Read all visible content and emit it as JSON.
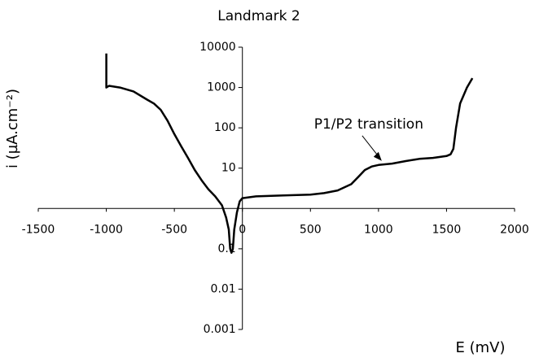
{
  "chart_data": {
    "type": "line",
    "title": "Landmark 2",
    "xlabel": "E (mV)",
    "ylabel": "i (µA.cm⁻²)",
    "xlim": [
      -1500,
      2000
    ],
    "xticks": [
      -1500,
      -1000,
      -500,
      0,
      500,
      1000,
      1500,
      2000
    ],
    "ylim": [
      0.001,
      10000
    ],
    "yticks": [
      0.001,
      0.01,
      0.1,
      10,
      100,
      1000,
      10000
    ],
    "y_log_scale": true,
    "x_axis_crossing": 1,
    "grid": false,
    "annotations": [
      {
        "text": "P1/P2 transition",
        "x": 1000,
        "y": 12
      }
    ],
    "series": [
      {
        "name": "Landmark 2",
        "color": "#000000",
        "x": [
          -1000,
          -1000,
          -980,
          -900,
          -800,
          -700,
          -650,
          -600,
          -550,
          -500,
          -450,
          -400,
          -350,
          -300,
          -250,
          -200,
          -150,
          -120,
          -100,
          -90,
          -80,
          -70,
          -60,
          -40,
          -20,
          0,
          100,
          300,
          500,
          600,
          700,
          800,
          850,
          900,
          950,
          1000,
          1100,
          1200,
          1300,
          1400,
          1500,
          1530,
          1550,
          1570,
          1600,
          1650,
          1690
        ],
        "values": [
          7000,
          1000,
          1100,
          1000,
          800,
          500,
          400,
          280,
          150,
          70,
          35,
          18,
          9,
          5,
          3,
          2,
          1.2,
          0.6,
          0.3,
          0.1,
          0.08,
          0.1,
          0.3,
          0.8,
          1.5,
          1.8,
          2,
          2.1,
          2.2,
          2.4,
          2.8,
          4,
          6,
          9,
          11,
          12,
          13,
          15,
          17,
          18,
          20,
          22,
          30,
          100,
          400,
          1000,
          1700
        ]
      }
    ]
  }
}
